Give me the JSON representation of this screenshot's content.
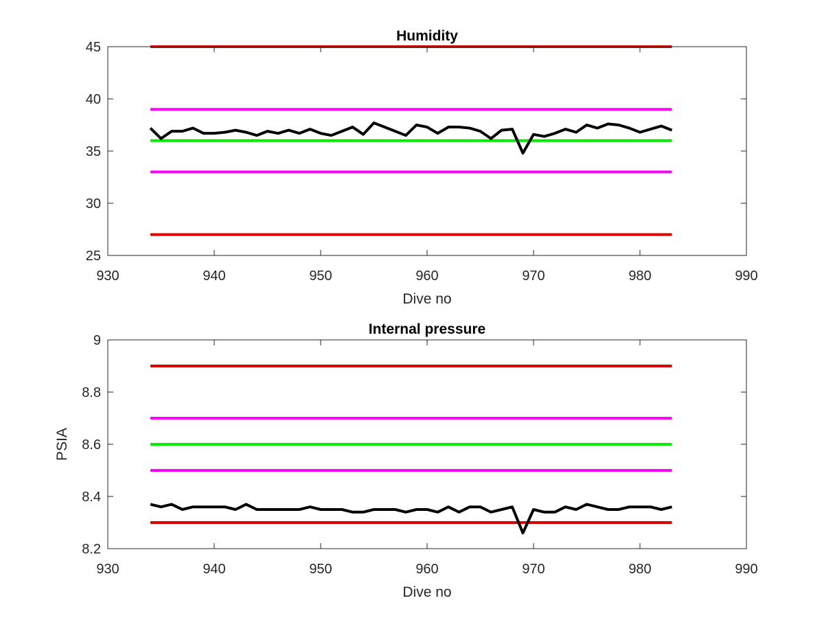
{
  "colors": {
    "data_line": "#000000",
    "red_limit": "#dd0000",
    "magenta_limit": "#ff00ff",
    "green_limit": "#00ee00",
    "axis": "#262626"
  },
  "chart_data": [
    {
      "type": "line",
      "title": "Humidity",
      "xlabel": "Dive no",
      "ylabel": "",
      "xlim": [
        930,
        990
      ],
      "ylim": [
        25,
        45
      ],
      "xticks": [
        930,
        940,
        950,
        960,
        970,
        980,
        990
      ],
      "yticks": [
        25,
        30,
        35,
        40,
        45
      ],
      "xtick_labels": [
        "930",
        "940",
        "950",
        "960",
        "970",
        "980",
        "990"
      ],
      "ytick_labels": [
        "25",
        "30",
        "35",
        "40",
        "45"
      ],
      "grid": false,
      "legend": "none",
      "reference_lines": [
        {
          "y": 45,
          "x_range": [
            934,
            983
          ],
          "color": "#dd0000"
        },
        {
          "y": 39,
          "x_range": [
            934,
            983
          ],
          "color": "#ff00ff"
        },
        {
          "y": 36,
          "x_range": [
            934,
            983
          ],
          "color": "#00ee00"
        },
        {
          "y": 33,
          "x_range": [
            934,
            983
          ],
          "color": "#ff00ff"
        },
        {
          "y": 27,
          "x_range": [
            934,
            983
          ],
          "color": "#dd0000"
        }
      ],
      "series": [
        {
          "color": "#000000",
          "x": [
            934,
            935,
            936,
            937,
            938,
            939,
            940,
            941,
            942,
            943,
            944,
            945,
            946,
            947,
            948,
            949,
            950,
            951,
            952,
            953,
            954,
            955,
            956,
            957,
            958,
            959,
            960,
            961,
            962,
            963,
            964,
            965,
            966,
            967,
            968,
            969,
            970,
            971,
            972,
            973,
            974,
            975,
            976,
            977,
            978,
            979,
            980,
            981,
            982,
            983
          ],
          "values": [
            37.2,
            36.2,
            36.9,
            36.9,
            37.2,
            36.7,
            36.7,
            36.8,
            37.0,
            36.8,
            36.5,
            36.9,
            36.7,
            37.0,
            36.7,
            37.1,
            36.7,
            36.5,
            36.9,
            37.3,
            36.6,
            37.7,
            37.3,
            36.9,
            36.5,
            37.5,
            37.3,
            36.7,
            37.3,
            37.3,
            37.2,
            36.9,
            36.2,
            37.0,
            37.1,
            34.8,
            36.6,
            36.4,
            36.7,
            37.1,
            36.8,
            37.5,
            37.2,
            37.6,
            37.5,
            37.2,
            36.8,
            37.1,
            37.4,
            37.0
          ]
        }
      ]
    },
    {
      "type": "line",
      "title": "Internal pressure",
      "xlabel": "Dive no",
      "ylabel": "PSIA",
      "xlim": [
        930,
        990
      ],
      "ylim": [
        8.2,
        9.0
      ],
      "xticks": [
        930,
        940,
        950,
        960,
        970,
        980,
        990
      ],
      "yticks": [
        8.2,
        8.4,
        8.6,
        8.8,
        9.0
      ],
      "xtick_labels": [
        "930",
        "940",
        "950",
        "960",
        "970",
        "980",
        "990"
      ],
      "ytick_labels": [
        "8.2",
        "8.4",
        "8.6",
        "8.8",
        "9"
      ],
      "grid": false,
      "legend": "none",
      "reference_lines": [
        {
          "y": 8.9,
          "x_range": [
            934,
            983
          ],
          "color": "#dd0000"
        },
        {
          "y": 8.7,
          "x_range": [
            934,
            983
          ],
          "color": "#ff00ff"
        },
        {
          "y": 8.6,
          "x_range": [
            934,
            983
          ],
          "color": "#00ee00"
        },
        {
          "y": 8.5,
          "x_range": [
            934,
            983
          ],
          "color": "#ff00ff"
        },
        {
          "y": 8.3,
          "x_range": [
            934,
            983
          ],
          "color": "#dd0000"
        }
      ],
      "series": [
        {
          "color": "#000000",
          "x": [
            934,
            935,
            936,
            937,
            938,
            939,
            940,
            941,
            942,
            943,
            944,
            945,
            946,
            947,
            948,
            949,
            950,
            951,
            952,
            953,
            954,
            955,
            956,
            957,
            958,
            959,
            960,
            961,
            962,
            963,
            964,
            965,
            966,
            967,
            968,
            969,
            970,
            971,
            972,
            973,
            974,
            975,
            976,
            977,
            978,
            979,
            980,
            981,
            982,
            983
          ],
          "values": [
            8.37,
            8.36,
            8.37,
            8.35,
            8.36,
            8.36,
            8.36,
            8.36,
            8.35,
            8.37,
            8.35,
            8.35,
            8.35,
            8.35,
            8.35,
            8.36,
            8.35,
            8.35,
            8.35,
            8.34,
            8.34,
            8.35,
            8.35,
            8.35,
            8.34,
            8.35,
            8.35,
            8.34,
            8.36,
            8.34,
            8.36,
            8.36,
            8.34,
            8.35,
            8.36,
            8.26,
            8.35,
            8.34,
            8.34,
            8.36,
            8.35,
            8.37,
            8.36,
            8.35,
            8.35,
            8.36,
            8.36,
            8.36,
            8.35,
            8.36
          ]
        }
      ]
    }
  ]
}
